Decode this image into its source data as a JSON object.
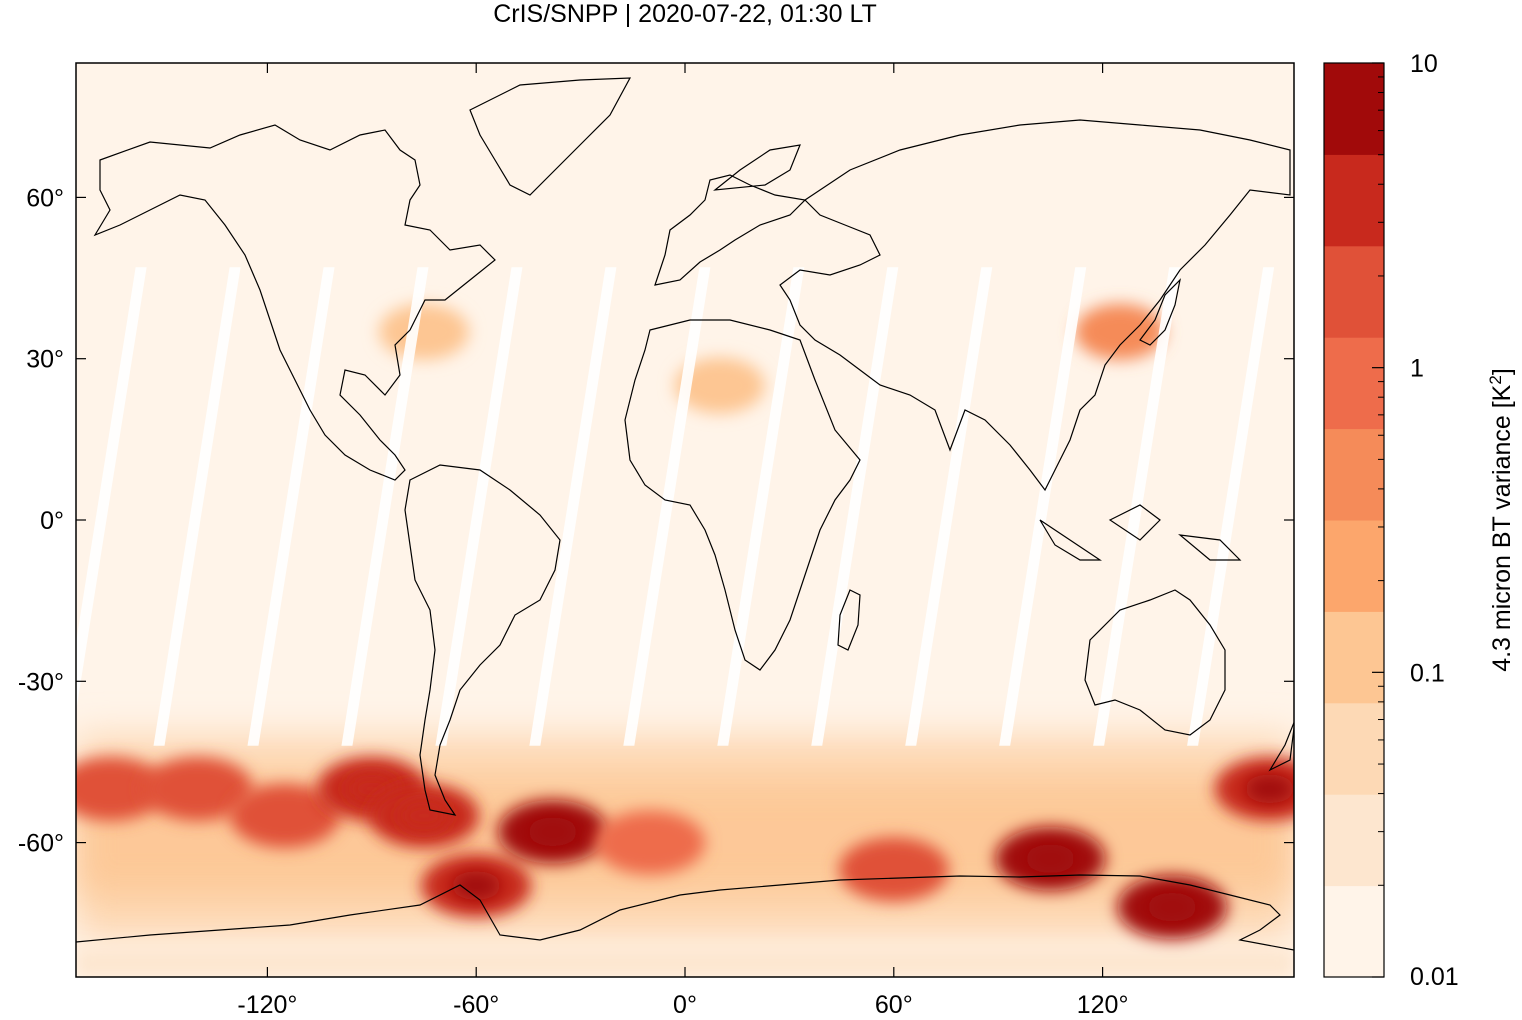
{
  "chart_data": {
    "type": "heatmap",
    "title": "CrIS/SNPP | 2020-07-22, 01:30 LT",
    "map_projection": "equirectangular",
    "xlim": [
      -175,
      175
    ],
    "ylim": [
      -85,
      85
    ],
    "x_ticks": [
      {
        "value": -120,
        "label": "-120°"
      },
      {
        "value": -60,
        "label": "-60°"
      },
      {
        "value": 0,
        "label": "0°"
      },
      {
        "value": 60,
        "label": "60°"
      },
      {
        "value": 120,
        "label": "120°"
      }
    ],
    "y_ticks": [
      {
        "value": 60,
        "label": "60°"
      },
      {
        "value": 30,
        "label": "30°"
      },
      {
        "value": 0,
        "label": "0°"
      },
      {
        "value": -30,
        "label": "-30°"
      },
      {
        "value": -60,
        "label": "-60°"
      }
    ],
    "colorbar": {
      "label": "4.3 micron BT variance [K",
      "label_superscript": "2",
      "label_suffix": "]",
      "scale": "log",
      "range": [
        0.01,
        10
      ],
      "tick_labels": [
        {
          "value": 10,
          "label": "10"
        },
        {
          "value": 1,
          "label": "1"
        },
        {
          "value": 0.1,
          "label": "0.1"
        },
        {
          "value": 0.01,
          "label": "0.01"
        }
      ],
      "levels": [
        "#fff4e9",
        "#fde6cf",
        "#fdd9b5",
        "#fdc693",
        "#fca66c",
        "#f58b59",
        "#ee6c4b",
        "#e05138",
        "#c8291d",
        "#a10a0a"
      ]
    },
    "regions": [
      {
        "lon": -165,
        "lat": -50,
        "value": 2.0
      },
      {
        "lon": -140,
        "lat": -50,
        "value": 1.5
      },
      {
        "lon": -115,
        "lat": -55,
        "value": 2.5
      },
      {
        "lon": -90,
        "lat": -50,
        "value": 3.0
      },
      {
        "lon": -75,
        "lat": -55,
        "value": 4.0
      },
      {
        "lon": -60,
        "lat": -68,
        "value": 5.0
      },
      {
        "lon": -38,
        "lat": -58,
        "value": 8.0
      },
      {
        "lon": -10,
        "lat": -60,
        "value": 1.2
      },
      {
        "lon": 60,
        "lat": -65,
        "value": 1.5
      },
      {
        "lon": 105,
        "lat": -63,
        "value": 6.0
      },
      {
        "lon": 140,
        "lat": -72,
        "value": 9.0
      },
      {
        "lon": 168,
        "lat": -50,
        "value": 5.0
      },
      {
        "lon": 125,
        "lat": 35,
        "value": 0.5
      },
      {
        "lon": -75,
        "lat": 35,
        "value": 0.15
      },
      {
        "lon": 10,
        "lat": 25,
        "value": 0.15
      }
    ]
  }
}
